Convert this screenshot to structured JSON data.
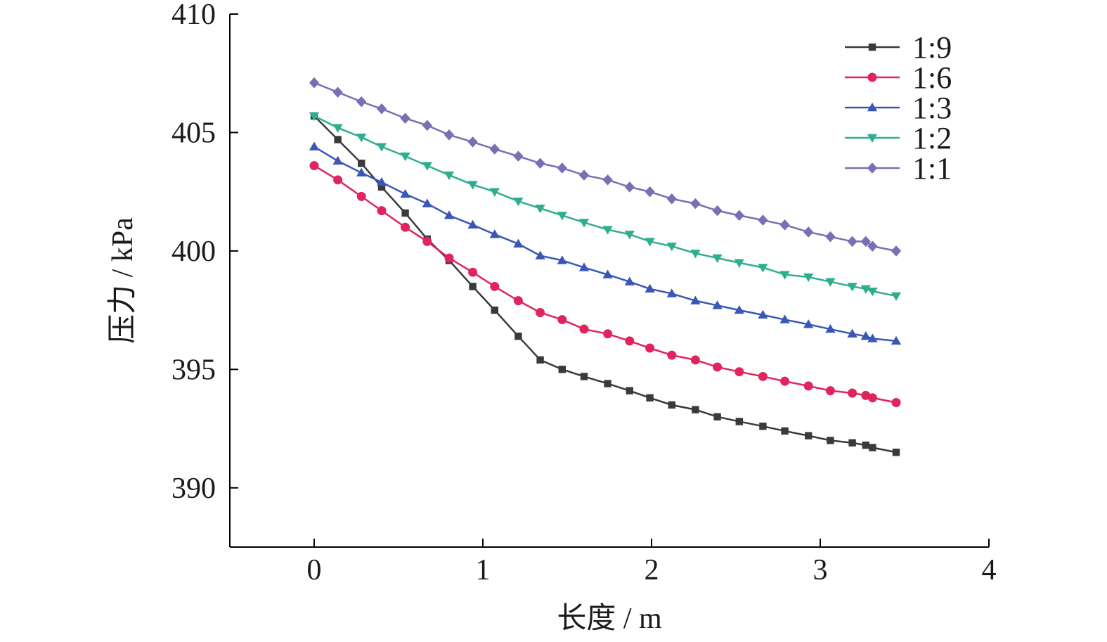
{
  "chart_data": {
    "type": "line",
    "xlabel": "长度 / m",
    "ylabel": "压力 / kPa",
    "xlim": [
      -0.5,
      4
    ],
    "ylim": [
      387.5,
      410
    ],
    "xticks": [
      0,
      1,
      2,
      3,
      4
    ],
    "yticks": [
      390,
      395,
      400,
      405,
      410
    ],
    "grid": false,
    "legend_position": "top-right",
    "series": [
      {
        "name": "1:9",
        "color": "#3a3a3a",
        "marker": "square",
        "x": [
          0,
          0.14,
          0.28,
          0.4,
          0.54,
          0.67,
          0.8,
          0.94,
          1.07,
          1.21,
          1.34,
          1.47,
          1.6,
          1.74,
          1.87,
          1.99,
          2.12,
          2.26,
          2.39,
          2.52,
          2.66,
          2.79,
          2.93,
          3.06,
          3.19,
          3.27,
          3.31,
          3.45
        ],
        "y": [
          405.7,
          404.7,
          403.7,
          402.7,
          401.6,
          400.5,
          399.6,
          398.5,
          397.5,
          396.4,
          395.4,
          395.0,
          394.7,
          394.4,
          394.1,
          393.8,
          393.5,
          393.3,
          393.0,
          392.8,
          392.6,
          392.4,
          392.2,
          392.0,
          391.9,
          391.8,
          391.7,
          391.5
        ]
      },
      {
        "name": "1:6",
        "color": "#e0245e",
        "marker": "circle",
        "x": [
          0,
          0.14,
          0.28,
          0.4,
          0.54,
          0.67,
          0.8,
          0.94,
          1.07,
          1.21,
          1.34,
          1.47,
          1.6,
          1.74,
          1.87,
          1.99,
          2.12,
          2.26,
          2.39,
          2.52,
          2.66,
          2.79,
          2.93,
          3.06,
          3.19,
          3.27,
          3.31,
          3.45
        ],
        "y": [
          403.6,
          403.0,
          402.3,
          401.7,
          401.0,
          400.4,
          399.7,
          399.1,
          398.5,
          397.9,
          397.4,
          397.1,
          396.7,
          396.5,
          396.2,
          395.9,
          395.6,
          395.4,
          395.1,
          394.9,
          394.7,
          394.5,
          394.3,
          394.1,
          394.0,
          393.9,
          393.8,
          393.6
        ]
      },
      {
        "name": "1:3",
        "color": "#3a57b8",
        "marker": "triangle-up",
        "x": [
          0,
          0.14,
          0.28,
          0.4,
          0.54,
          0.67,
          0.8,
          0.94,
          1.07,
          1.21,
          1.34,
          1.47,
          1.6,
          1.74,
          1.87,
          1.99,
          2.12,
          2.26,
          2.39,
          2.52,
          2.66,
          2.79,
          2.93,
          3.06,
          3.19,
          3.27,
          3.31,
          3.45
        ],
        "y": [
          404.4,
          403.8,
          403.3,
          402.9,
          402.4,
          402.0,
          401.5,
          401.1,
          400.7,
          400.3,
          399.8,
          399.6,
          399.3,
          399.0,
          398.7,
          398.4,
          398.2,
          397.9,
          397.7,
          397.5,
          397.3,
          397.1,
          396.9,
          396.7,
          396.5,
          396.4,
          396.3,
          396.2
        ]
      },
      {
        "name": "1:2",
        "color": "#2fae8f",
        "marker": "triangle-down",
        "x": [
          0,
          0.14,
          0.28,
          0.4,
          0.54,
          0.67,
          0.8,
          0.94,
          1.07,
          1.21,
          1.34,
          1.47,
          1.6,
          1.74,
          1.87,
          1.99,
          2.12,
          2.26,
          2.39,
          2.52,
          2.66,
          2.79,
          2.93,
          3.06,
          3.19,
          3.27,
          3.31,
          3.45
        ],
        "y": [
          405.7,
          405.2,
          404.8,
          404.4,
          404.0,
          403.6,
          403.2,
          402.8,
          402.5,
          402.1,
          401.8,
          401.5,
          401.2,
          400.9,
          400.7,
          400.4,
          400.2,
          399.9,
          399.7,
          399.5,
          399.3,
          399.0,
          398.9,
          398.7,
          398.5,
          398.4,
          398.3,
          398.1
        ]
      },
      {
        "name": "1:1",
        "color": "#7a6fb3",
        "marker": "diamond",
        "x": [
          0,
          0.14,
          0.28,
          0.4,
          0.54,
          0.67,
          0.8,
          0.94,
          1.07,
          1.21,
          1.34,
          1.47,
          1.6,
          1.74,
          1.87,
          1.99,
          2.12,
          2.26,
          2.39,
          2.52,
          2.66,
          2.79,
          2.93,
          3.06,
          3.19,
          3.27,
          3.31,
          3.45
        ],
        "y": [
          407.1,
          406.7,
          406.3,
          406.0,
          405.6,
          405.3,
          404.9,
          404.6,
          404.3,
          404.0,
          403.7,
          403.5,
          403.2,
          403.0,
          402.7,
          402.5,
          402.2,
          402.0,
          401.7,
          401.5,
          401.3,
          401.1,
          400.8,
          400.6,
          400.4,
          400.4,
          400.2,
          400.0
        ]
      }
    ]
  }
}
